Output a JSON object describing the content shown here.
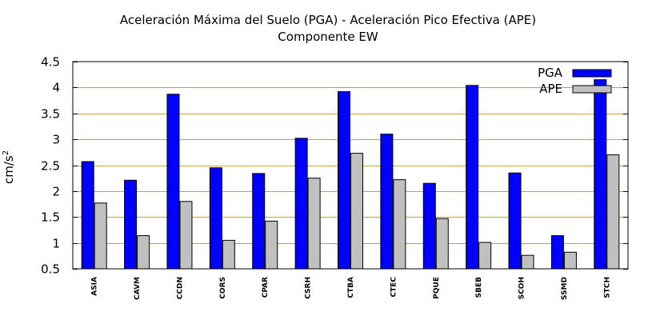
{
  "chart_data": {
    "type": "bar",
    "title": "Aceleración Máxima del Suelo (PGA) -  Aceleración Pico Efectiva (APE)",
    "subtitle": "Componente EW",
    "xlabel": "",
    "ylabel_base": "cm/s",
    "ylabel_exp": "2",
    "ylim": [
      0.5,
      4.5
    ],
    "yticks": [
      0.5,
      1,
      1.5,
      2,
      2.5,
      3,
      3.5,
      4,
      4.5
    ],
    "ytick_labels": [
      "0.5",
      "1",
      "1.5",
      "2",
      "2.5",
      "3",
      "3.5",
      "4",
      "4.5"
    ],
    "grid": true,
    "legend_position": "top-right",
    "categories": [
      "ASIA",
      "CAVM",
      "CCDN",
      "CORS",
      "CPAR",
      "CSRH",
      "CTBA",
      "CTEC",
      "PQUE",
      "SBEB",
      "SCOH",
      "SSMD",
      "STCH"
    ],
    "series": [
      {
        "name": "PGA",
        "color": "#0000ff",
        "values": [
          2.57,
          2.21,
          3.87,
          2.45,
          2.34,
          3.02,
          3.92,
          3.1,
          2.15,
          4.04,
          2.35,
          1.14,
          4.15
        ]
      },
      {
        "name": "APE",
        "color": "#c0c0c0",
        "values": [
          1.77,
          1.14,
          1.8,
          1.05,
          1.42,
          2.25,
          2.73,
          2.22,
          1.47,
          1.01,
          0.76,
          0.82,
          2.7
        ]
      }
    ],
    "colors": {
      "grid": "#d4a017",
      "frame": "#000000"
    }
  }
}
